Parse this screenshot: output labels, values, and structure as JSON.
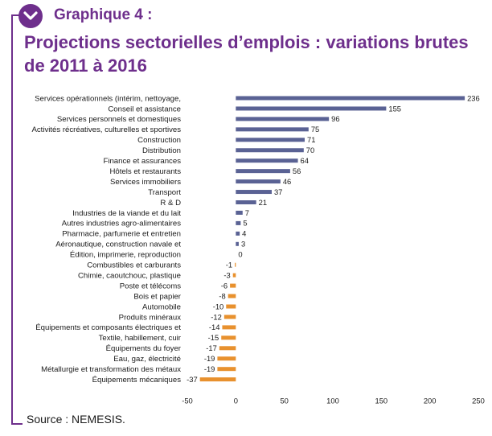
{
  "header": {
    "label": "Graphique 4 :",
    "title": "Projections sectorielles d’emplois : variations brutes de 2011 à 2016"
  },
  "source": "Source : NEMESIS.",
  "colors": {
    "accent": "#6e2f8c",
    "positive": "#5a6294",
    "negative": "#e8912e"
  },
  "icons": {
    "badge": "chevron-check-icon"
  },
  "chart_data": {
    "type": "bar",
    "orientation": "horizontal",
    "categories": [
      "Services opérationnels (intérim, nettoyage,",
      "Conseil et assistance",
      "Services personnels et domestiques",
      "Activités récréatives, culturelles et sportives",
      "Construction",
      "Distribution",
      "Finance et assurances",
      "Hôtels et restaurants",
      "Services immobiliers",
      "Transport",
      "R & D",
      "Industries de la viande et du lait",
      "Autres industries agro-alimentaires",
      "Pharmacie, parfumerie et entretien",
      "Aéronautique, construction navale et",
      "Édition, imprimerie, reproduction",
      "Combustibles et carburants",
      "Chimie, caoutchouc, plastique",
      "Poste et télécoms",
      "Bois et papier",
      "Automobile",
      "Produits minéraux",
      "Équipements et composants électriques et",
      "Textile, habillement, cuir",
      "Équipements du foyer",
      "Eau, gaz, électricité",
      "Métallurgie et transformation des métaux",
      "Équipements mécaniques"
    ],
    "values": [
      236,
      155,
      96,
      75,
      71,
      70,
      64,
      56,
      46,
      37,
      21,
      7,
      5,
      4,
      3,
      0,
      -1,
      -3,
      -6,
      -8,
      -10,
      -12,
      -14,
      -15,
      -17,
      -19,
      -19,
      -37
    ],
    "xlim": [
      -50,
      250
    ],
    "xticks": [
      -50,
      0,
      50,
      100,
      150,
      200,
      250
    ],
    "grid": false
  }
}
